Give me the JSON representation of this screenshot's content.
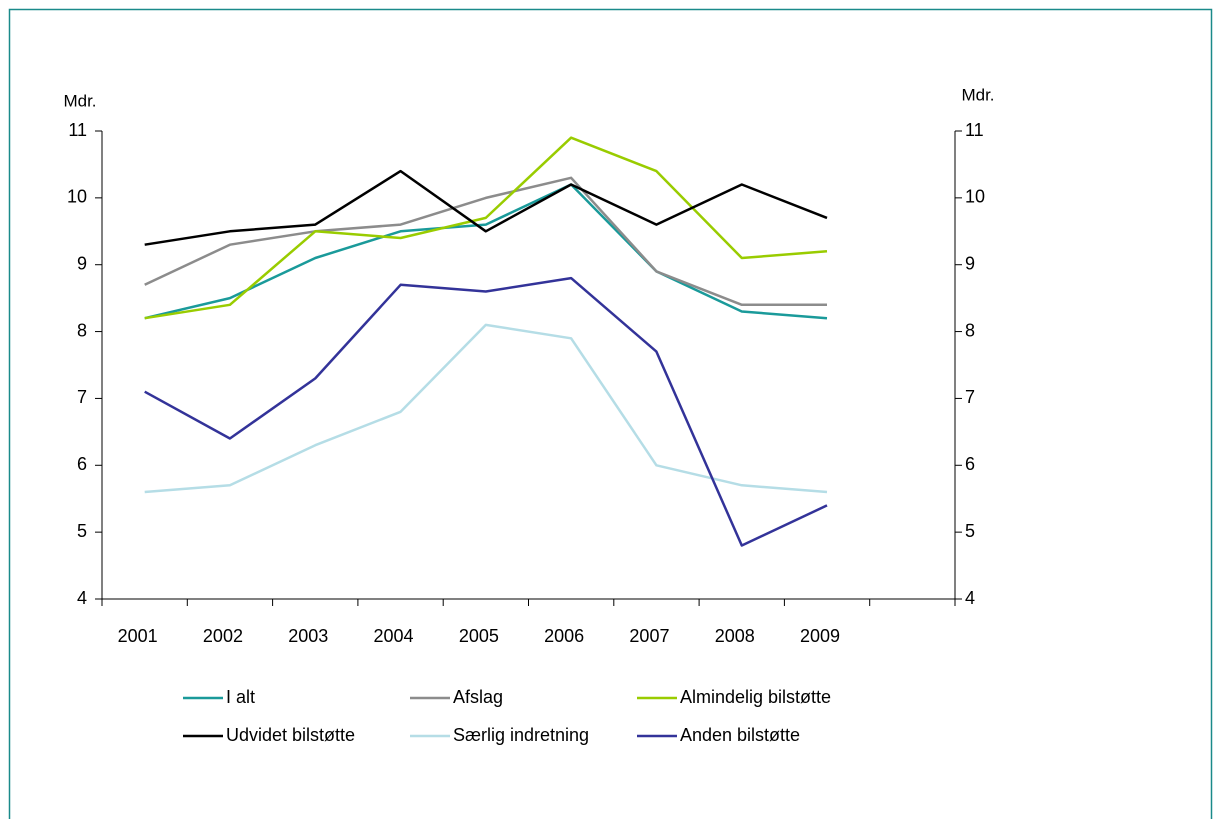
{
  "chart_data": {
    "type": "line",
    "y_label": "Mdr.",
    "y2_label": "Mdr.",
    "categories": [
      "2001",
      "2002",
      "2003",
      "2004",
      "2005",
      "2006",
      "2007",
      "2008",
      "2009",
      null
    ],
    "series": [
      {
        "name": "I alt",
        "color": "#1a9a9a",
        "values": [
          8.2,
          8.5,
          9.1,
          9.5,
          9.6,
          10.2,
          8.9,
          8.3,
          8.2,
          null
        ]
      },
      {
        "name": "Afslag",
        "color": "#8c8c8c",
        "values": [
          8.7,
          9.3,
          9.5,
          9.6,
          10.0,
          10.3,
          8.9,
          8.4,
          8.4,
          null
        ]
      },
      {
        "name": "Almindelig bilstøtte",
        "color": "#99cc00",
        "values": [
          8.2,
          8.4,
          9.5,
          9.4,
          9.7,
          10.9,
          10.4,
          9.1,
          9.2,
          null
        ]
      },
      {
        "name": "Udvidet bilstøtte",
        "color": "#000000",
        "values": [
          9.3,
          9.5,
          9.6,
          10.4,
          9.5,
          10.2,
          9.6,
          10.2,
          9.7,
          null
        ]
      },
      {
        "name": "Særlig indretning",
        "color": "#b5dde6",
        "values": [
          5.6,
          5.7,
          6.3,
          6.8,
          8.1,
          7.9,
          6.0,
          5.7,
          5.6,
          null
        ]
      },
      {
        "name": "Anden bilstøtte",
        "color": "#333399",
        "values": [
          7.1,
          6.4,
          7.3,
          8.7,
          8.6,
          8.8,
          7.7,
          4.8,
          5.4,
          null
        ]
      }
    ],
    "ylim": [
      4,
      11
    ],
    "yticks": [
      4,
      5,
      6,
      7,
      8,
      9,
      10,
      11
    ],
    "y2lim": [
      4,
      11
    ],
    "y2ticks": [
      4,
      5,
      6,
      7,
      8,
      9,
      10,
      11
    ]
  }
}
